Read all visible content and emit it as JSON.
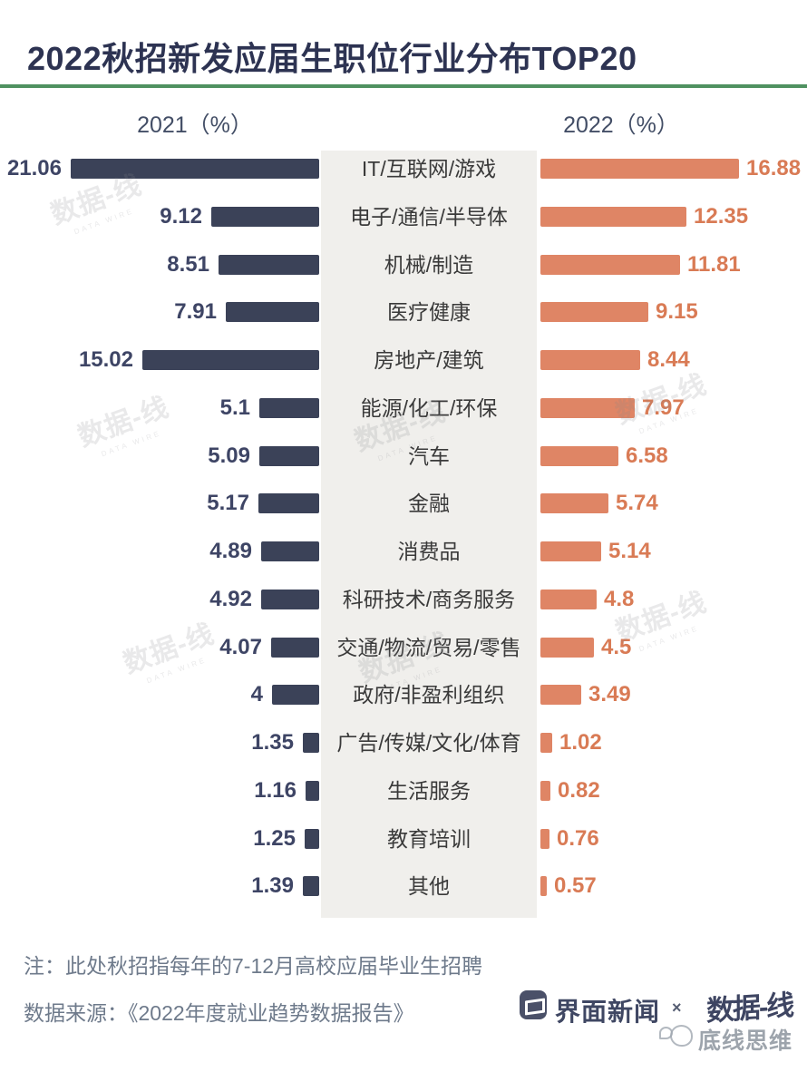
{
  "page": {
    "title": "2022秋招新发应届生职位行业分布TOP20",
    "note": "注：此处秋招指每年的7-12月高校应届毕业生招聘",
    "source": "数据来源：《2022年度就业趋势数据报告》"
  },
  "chart_data": {
    "type": "bar",
    "variant": "tornado",
    "title": "2022秋招新发应届生职位行业分布TOP20",
    "categories": [
      "IT/互联网/游戏",
      "电子/通信/半导体",
      "机械/制造",
      "医疗健康",
      "房地产/建筑",
      "能源/化工/环保",
      "汽车",
      "金融",
      "消费品",
      "科研技术/商务服务",
      "交通/物流/贸易/零售",
      "政府/非盈利组织",
      "广告/传媒/文化/体育",
      "生活服务",
      "教育培训",
      "其他"
    ],
    "series": [
      {
        "name": "2021（%）",
        "side": "left",
        "color": "#3b4258",
        "values": [
          21.06,
          9.12,
          8.51,
          7.91,
          15.02,
          5.1,
          5.09,
          5.17,
          4.89,
          4.92,
          4.07,
          4,
          1.35,
          1.16,
          1.25,
          1.39
        ]
      },
      {
        "name": "2022（%）",
        "side": "right",
        "color": "#df8565",
        "values": [
          16.88,
          12.35,
          11.81,
          9.15,
          8.44,
          7.97,
          6.58,
          5.74,
          5.14,
          4.8,
          4.5,
          3.49,
          1.02,
          0.82,
          0.76,
          0.57
        ]
      }
    ],
    "xlim": [
      0,
      21.5
    ],
    "grid": false,
    "value_labels": "outside-end",
    "legend_position": "column-headers-top"
  },
  "branding": {
    "jiemian_label": "界面新闻",
    "separator": "×",
    "datawire_label": "数据-线",
    "watermark_label": "底线思维",
    "watermark_stamp_text": "数据-线",
    "watermark_stamp_subtext": "DATA WIRE"
  },
  "colors": {
    "left_bar": "#3b4258",
    "left_value_text": "#3e4565",
    "right_bar": "#df8565",
    "right_value_text": "#d97b55",
    "category_panel": "#f0efec",
    "title_text": "#2d3352",
    "divider_green": "#4f9160",
    "note_text": "#6e7a8b",
    "category_text": "#3a3a3a",
    "header_text": "#434e66"
  }
}
